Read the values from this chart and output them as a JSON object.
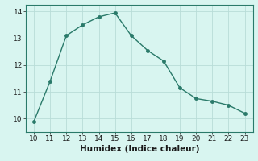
{
  "x": [
    10,
    11,
    12,
    13,
    14,
    15,
    16,
    17,
    18,
    19,
    20,
    21,
    22,
    23
  ],
  "y": [
    9.9,
    11.4,
    13.1,
    13.5,
    13.8,
    13.95,
    13.1,
    12.55,
    12.15,
    11.15,
    10.75,
    10.65,
    10.5,
    10.2
  ],
  "line_color": "#2a7a6a",
  "marker": "o",
  "marker_size": 2.5,
  "background_color": "#d8f5f0",
  "grid_color": "#b8ddd8",
  "xlabel": "Humidex (Indice chaleur)",
  "xlim": [
    9.5,
    23.5
  ],
  "ylim": [
    9.5,
    14.25
  ],
  "xticks": [
    10,
    11,
    12,
    13,
    14,
    15,
    16,
    17,
    18,
    19,
    20,
    21,
    22,
    23
  ],
  "yticks": [
    10,
    11,
    12,
    13,
    14
  ],
  "xlabel_fontsize": 7.5,
  "tick_fontsize": 6.5,
  "line_width": 1.0
}
